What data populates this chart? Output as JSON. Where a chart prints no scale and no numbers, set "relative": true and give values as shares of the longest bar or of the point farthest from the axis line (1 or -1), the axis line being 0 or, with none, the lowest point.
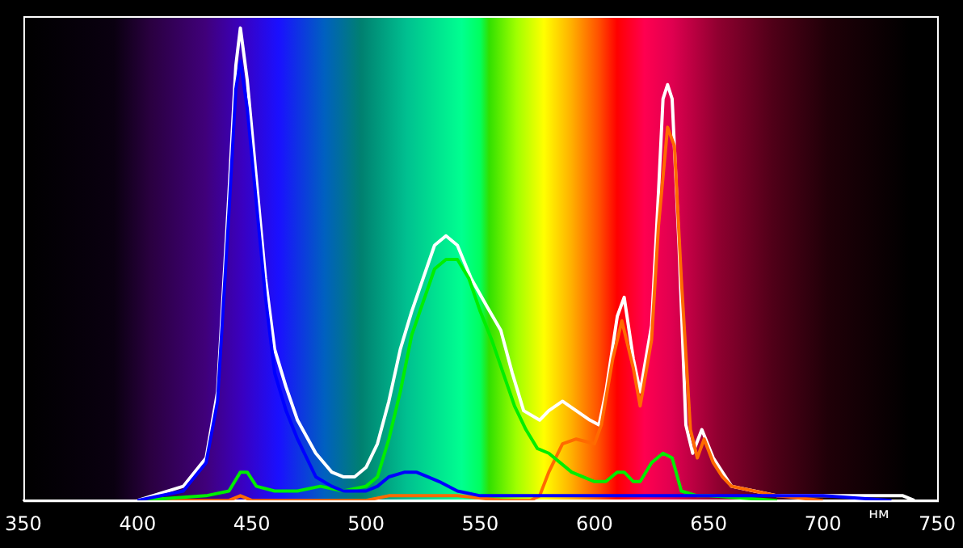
{
  "chart_data": {
    "type": "line",
    "relative": true,
    "xlabel": "нм",
    "xlim": [
      350,
      750
    ],
    "xticks": [
      350,
      400,
      450,
      500,
      550,
      600,
      650,
      700,
      750
    ],
    "grid": false,
    "legend": false,
    "marker": "none",
    "line_style": "solid",
    "series": [
      {
        "color": "#ffffff",
        "x": [
          400,
          420,
          430,
          435,
          440,
          443,
          445,
          448,
          452,
          456,
          460,
          465,
          470,
          478,
          485,
          490,
          495,
          500,
          505,
          510,
          515,
          520,
          525,
          530,
          535,
          540,
          546,
          553,
          559,
          564,
          569,
          576,
          580,
          586,
          592,
          598,
          602,
          605,
          610,
          613,
          617,
          620,
          625,
          628,
          630,
          632,
          634,
          637,
          640,
          643,
          647,
          652,
          656,
          660,
          670,
          680,
          720,
          735,
          740
        ],
        "values": [
          0,
          0.03,
          0.09,
          0.23,
          0.65,
          0.92,
          1,
          0.89,
          0.68,
          0.47,
          0.32,
          0.24,
          0.17,
          0.1,
          0.06,
          0.05,
          0.05,
          0.07,
          0.12,
          0.21,
          0.32,
          0.4,
          0.47,
          0.54,
          0.56,
          0.54,
          0.47,
          0.41,
          0.36,
          0.27,
          0.19,
          0.17,
          0.19,
          0.21,
          0.19,
          0.17,
          0.16,
          0.23,
          0.39,
          0.43,
          0.3,
          0.23,
          0.37,
          0.65,
          0.85,
          0.88,
          0.85,
          0.54,
          0.16,
          0.1,
          0.15,
          0.09,
          0.06,
          0.03,
          0.02,
          0.01,
          0.01,
          0.01,
          0
        ]
      },
      {
        "color": "#ff6a00",
        "x": [
          400,
          440,
          445,
          450,
          500,
          510,
          540,
          560,
          572,
          576,
          580,
          586,
          592,
          600,
          603,
          608,
          612,
          617,
          620,
          625,
          628,
          632,
          635,
          638,
          642,
          645,
          648,
          652,
          656,
          660,
          680,
          700
        ],
        "values": [
          0,
          0,
          0.01,
          0,
          0,
          0.01,
          0.01,
          0,
          0,
          0.01,
          0.06,
          0.12,
          0.13,
          0.12,
          0.16,
          0.3,
          0.38,
          0.28,
          0.2,
          0.34,
          0.58,
          0.79,
          0.75,
          0.47,
          0.15,
          0.09,
          0.13,
          0.08,
          0.05,
          0.03,
          0.01,
          0
        ]
      },
      {
        "color": "#00ee00",
        "x": [
          400,
          430,
          440,
          445,
          448,
          452,
          460,
          470,
          480,
          490,
          500,
          505,
          510,
          515,
          520,
          525,
          530,
          535,
          540,
          545,
          550,
          555,
          560,
          565,
          570,
          575,
          580,
          590,
          600,
          605,
          610,
          613,
          617,
          620,
          625,
          630,
          634,
          638,
          645,
          650,
          680
        ],
        "values": [
          0,
          0.01,
          0.02,
          0.06,
          0.06,
          0.03,
          0.02,
          0.02,
          0.03,
          0.02,
          0.03,
          0.05,
          0.13,
          0.23,
          0.35,
          0.42,
          0.49,
          0.51,
          0.51,
          0.47,
          0.4,
          0.34,
          0.27,
          0.2,
          0.15,
          0.11,
          0.1,
          0.06,
          0.04,
          0.04,
          0.06,
          0.06,
          0.04,
          0.04,
          0.08,
          0.1,
          0.09,
          0.02,
          0.01,
          0.01,
          0
        ]
      },
      {
        "color": "#0000ff",
        "x": [
          400,
          420,
          430,
          435,
          440,
          443,
          445,
          448,
          452,
          456,
          460,
          465,
          470,
          478,
          485,
          490,
          500,
          505,
          510,
          517,
          522,
          527,
          532,
          540,
          550,
          580,
          700,
          730
        ],
        "values": [
          0,
          0.02,
          0.08,
          0.21,
          0.61,
          0.87,
          0.93,
          0.83,
          0.63,
          0.43,
          0.27,
          0.19,
          0.13,
          0.05,
          0.03,
          0.02,
          0.02,
          0.03,
          0.05,
          0.06,
          0.06,
          0.05,
          0.04,
          0.02,
          0.01,
          0.01,
          0.01,
          0
        ]
      }
    ]
  }
}
